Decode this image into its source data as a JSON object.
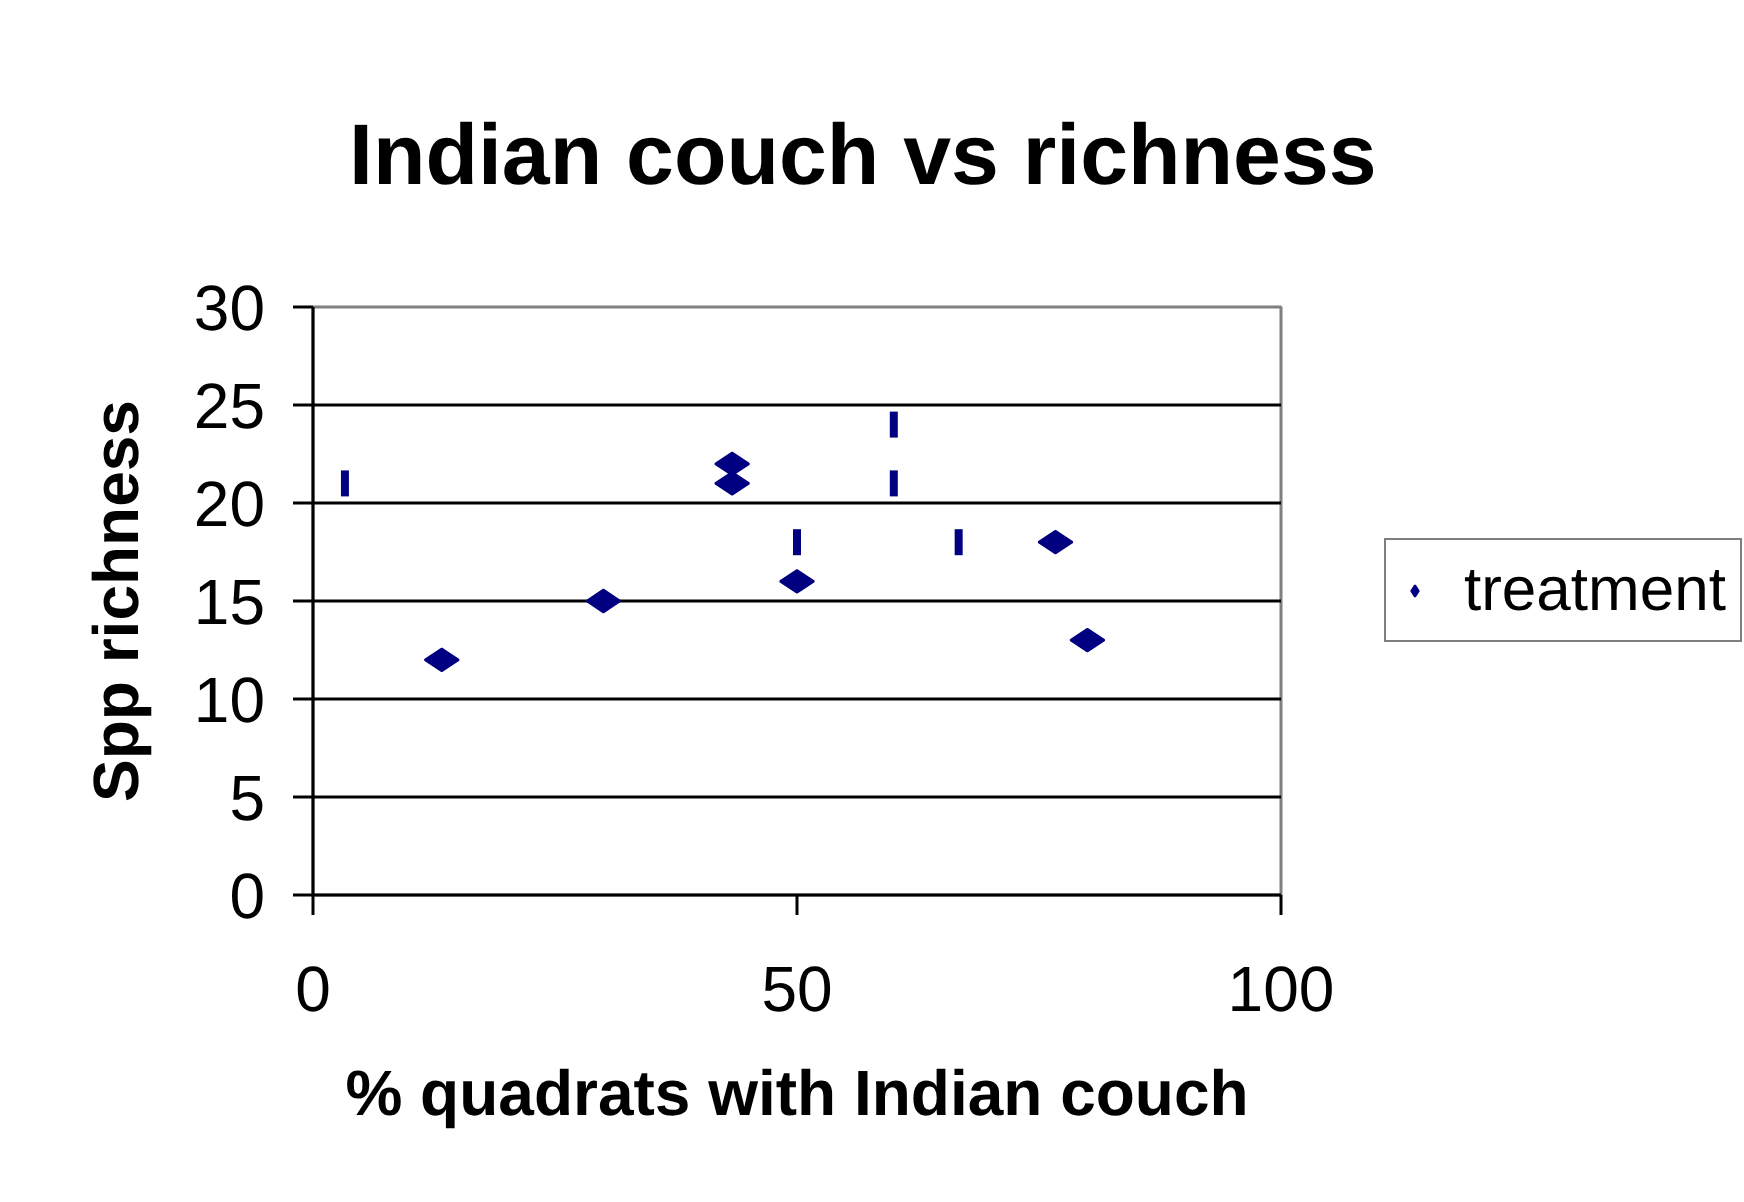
{
  "chart_data": {
    "type": "scatter",
    "title": "Indian couch vs richness",
    "xlabel": "% quadrats with Indian couch",
    "ylabel": "Spp richness",
    "xlim": [
      0,
      100
    ],
    "ylim": [
      0,
      30
    ],
    "xticks": [
      0,
      50,
      100
    ],
    "yticks": [
      0,
      5,
      10,
      15,
      20,
      25,
      30
    ],
    "grid": "y",
    "legend": "right",
    "series": [
      {
        "name": "treatment",
        "color": "#000080",
        "marker": "diamond",
        "x": [
          13.3,
          30,
          43.3,
          43.3,
          50,
          76.7,
          80
        ],
        "values": [
          12,
          15,
          22,
          21,
          16,
          18,
          13
        ]
      },
      {
        "color": "#000080",
        "x": [
          3.3,
          50,
          60,
          60,
          66.7
        ],
        "values": [
          21,
          18,
          24,
          21,
          18
        ]
      }
    ]
  }
}
